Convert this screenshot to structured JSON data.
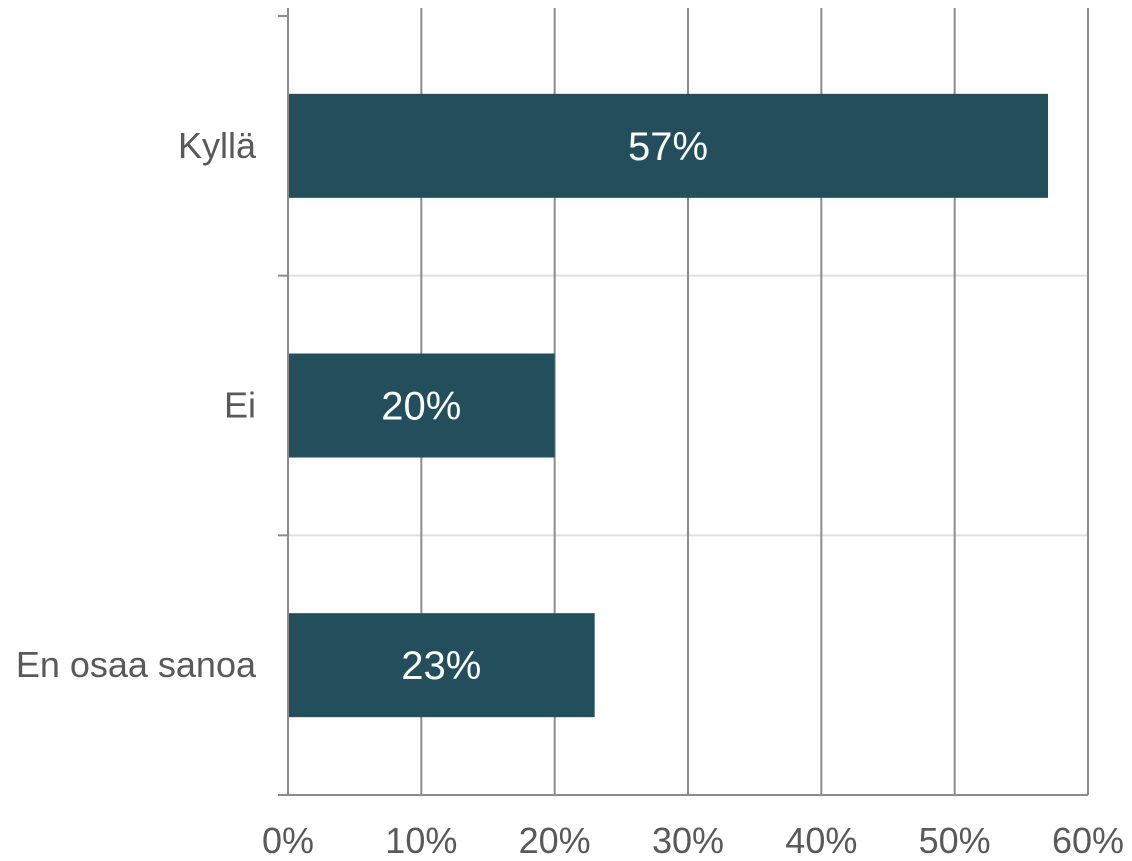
{
  "chart_data": {
    "type": "bar",
    "orientation": "horizontal",
    "title": "",
    "xlabel": "",
    "ylabel": "",
    "categories": [
      "Kyllä",
      "Ei",
      "En osaa sanoa"
    ],
    "values": [
      57,
      20,
      23
    ],
    "value_labels": [
      "57%",
      "20%",
      "23%"
    ],
    "xlim": [
      0,
      60
    ],
    "x_ticks": [
      0,
      10,
      20,
      30,
      40,
      50,
      60
    ],
    "x_tick_labels": [
      "0%",
      "10%",
      "20%",
      "30%",
      "40%",
      "50%",
      "60%"
    ],
    "grid": {
      "vertical": true,
      "horizontal_separators": true
    },
    "legend": "none",
    "colors": {
      "bar": "#234e5c",
      "vertical_grid": "#8c8c8c",
      "category_separator": "#e0e0e0",
      "axis": "#8c8c8c",
      "tick_text": "#595959",
      "data_label_text": "#ffffff"
    }
  }
}
